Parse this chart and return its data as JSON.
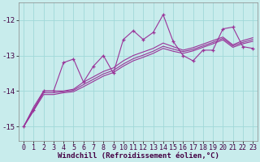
{
  "background_color": "#c8ecec",
  "grid_color": "#a0d8d8",
  "line_color": "#993399",
  "xlim_min": -0.5,
  "xlim_max": 23.5,
  "ylim_min": -15.4,
  "ylim_max": -11.5,
  "yticks": [
    -15,
    -14,
    -13,
    -12
  ],
  "xticks": [
    0,
    1,
    2,
    3,
    4,
    5,
    6,
    7,
    8,
    9,
    10,
    11,
    12,
    13,
    14,
    15,
    16,
    17,
    18,
    19,
    20,
    21,
    22,
    23
  ],
  "xlabel": "Windchill (Refroidissement éolien,°C)",
  "main_line": [
    -15.0,
    -14.55,
    -14.0,
    -14.0,
    -13.2,
    -13.1,
    -13.75,
    -13.3,
    -13.0,
    -13.5,
    -12.55,
    -12.3,
    -12.55,
    -12.35,
    -11.85,
    -12.6,
    -13.0,
    -13.15,
    -12.85,
    -12.85,
    -12.25,
    -12.2,
    -12.75,
    -12.8
  ],
  "smooth_lines": [
    [
      -15.0,
      -14.45,
      -14.0,
      -14.0,
      -14.0,
      -13.95,
      -13.75,
      -13.6,
      -13.45,
      -13.35,
      -13.15,
      -13.0,
      -12.9,
      -12.8,
      -12.65,
      -12.75,
      -12.85,
      -12.78,
      -12.68,
      -12.58,
      -12.48,
      -12.7,
      -12.58,
      -12.5
    ],
    [
      -15.0,
      -14.5,
      -14.05,
      -14.05,
      -14.02,
      -13.98,
      -13.82,
      -13.67,
      -13.52,
      -13.42,
      -13.24,
      -13.09,
      -12.99,
      -12.88,
      -12.74,
      -12.82,
      -12.89,
      -12.83,
      -12.73,
      -12.63,
      -12.52,
      -12.73,
      -12.63,
      -12.55
    ],
    [
      -15.0,
      -14.55,
      -14.1,
      -14.1,
      -14.05,
      -14.02,
      -13.88,
      -13.73,
      -13.58,
      -13.48,
      -13.3,
      -13.15,
      -13.05,
      -12.94,
      -12.8,
      -12.88,
      -12.94,
      -12.87,
      -12.77,
      -12.67,
      -12.56,
      -12.77,
      -12.67,
      -12.6
    ]
  ],
  "tick_fontsize": 6,
  "xlabel_fontsize": 6.5
}
